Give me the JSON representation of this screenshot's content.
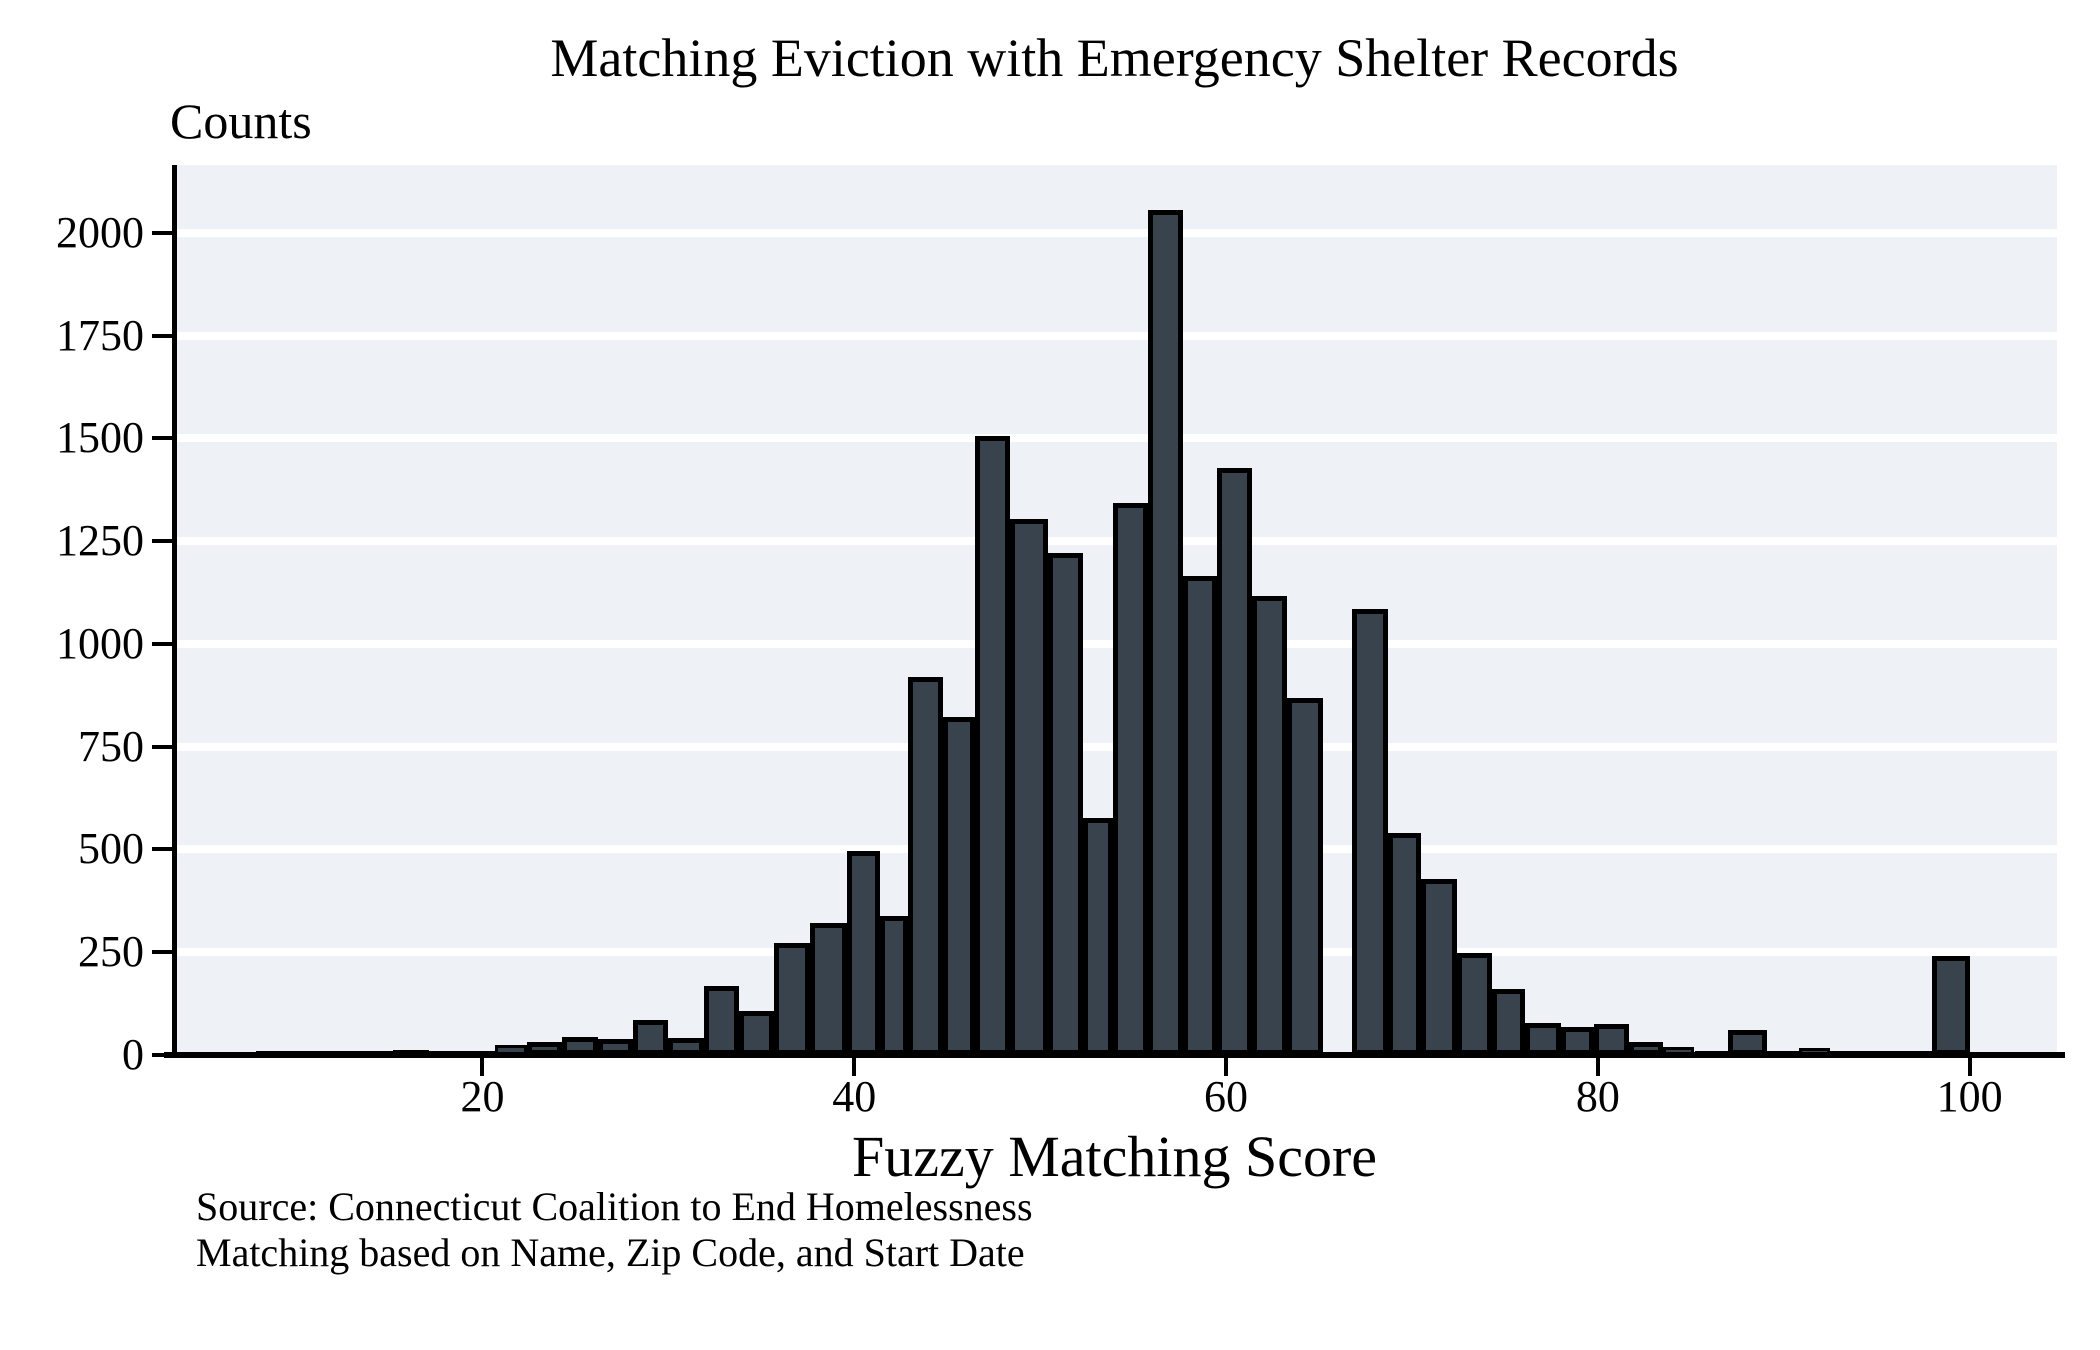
{
  "title": "Matching Eviction with Emergency Shelter Records",
  "notes": {
    "source_line1": "Source: Connecticut Coalition to End Homelessness",
    "source_line2": "Matching based on Name, Zip Code, and Start Date"
  },
  "colors": {
    "page_bg": "#ffffff",
    "plot_bg": "#eef1f6",
    "gridline": "#ffffff",
    "bar_fill": "#39434e",
    "bar_edge": "#000000",
    "axis": "#000000",
    "text": "#000000"
  },
  "chart_data": {
    "type": "bar",
    "subtype": "histogram",
    "title": "Matching Eviction with Emergency Shelter Records",
    "xlabel": "Fuzzy Matching Score",
    "ylabel": "Counts",
    "xlim": [
      3.3,
      104.7
    ],
    "ylim": [
      0,
      2165
    ],
    "x_ticks": [
      20,
      40,
      60,
      80,
      100
    ],
    "y_ticks": [
      0,
      250,
      500,
      750,
      1000,
      1250,
      1500,
      1750,
      2000
    ],
    "grid": "horizontal",
    "legend": "none",
    "bins": [
      {
        "x0": 7.8,
        "x1": 9.8,
        "n": 6
      },
      {
        "x0": 9.8,
        "x1": 11.6,
        "n": 3
      },
      {
        "x0": 11.6,
        "x1": 13.3,
        "n": 2
      },
      {
        "x0": 13.3,
        "x1": 15.2,
        "n": 8
      },
      {
        "x0": 15.2,
        "x1": 17.1,
        "n": 12
      },
      {
        "x0": 17.1,
        "x1": 19.1,
        "n": 8
      },
      {
        "x0": 19.1,
        "x1": 20.7,
        "n": 5
      },
      {
        "x0": 20.7,
        "x1": 22.4,
        "n": 24
      },
      {
        "x0": 22.4,
        "x1": 24.3,
        "n": 31
      },
      {
        "x0": 24.3,
        "x1": 26.2,
        "n": 45
      },
      {
        "x0": 26.2,
        "x1": 28.1,
        "n": 38
      },
      {
        "x0": 28.1,
        "x1": 30.0,
        "n": 85
      },
      {
        "x0": 30.0,
        "x1": 31.9,
        "n": 42
      },
      {
        "x0": 31.9,
        "x1": 33.8,
        "n": 168
      },
      {
        "x0": 33.8,
        "x1": 35.7,
        "n": 108
      },
      {
        "x0": 35.7,
        "x1": 37.6,
        "n": 273
      },
      {
        "x0": 37.6,
        "x1": 39.6,
        "n": 320
      },
      {
        "x0": 39.6,
        "x1": 41.4,
        "n": 497
      },
      {
        "x0": 41.4,
        "x1": 42.9,
        "n": 338
      },
      {
        "x0": 42.9,
        "x1": 44.8,
        "n": 919
      },
      {
        "x0": 44.8,
        "x1": 46.5,
        "n": 822
      },
      {
        "x0": 46.5,
        "x1": 48.4,
        "n": 1505
      },
      {
        "x0": 48.4,
        "x1": 50.4,
        "n": 1304
      },
      {
        "x0": 50.4,
        "x1": 52.3,
        "n": 1220
      },
      {
        "x0": 52.3,
        "x1": 53.9,
        "n": 576
      },
      {
        "x0": 53.9,
        "x1": 55.8,
        "n": 1344
      },
      {
        "x0": 55.8,
        "x1": 57.7,
        "n": 2055
      },
      {
        "x0": 57.7,
        "x1": 59.5,
        "n": 1166
      },
      {
        "x0": 59.5,
        "x1": 61.4,
        "n": 1429
      },
      {
        "x0": 61.4,
        "x1": 63.3,
        "n": 1117
      },
      {
        "x0": 63.3,
        "x1": 65.2,
        "n": 868
      },
      {
        "x0": 65.2,
        "x1": 66.8,
        "n": 0
      },
      {
        "x0": 66.8,
        "x1": 68.7,
        "n": 1085
      },
      {
        "x0": 68.7,
        "x1": 70.5,
        "n": 540
      },
      {
        "x0": 70.5,
        "x1": 72.4,
        "n": 428
      },
      {
        "x0": 72.4,
        "x1": 74.3,
        "n": 247
      },
      {
        "x0": 74.3,
        "x1": 76.1,
        "n": 160
      },
      {
        "x0": 76.1,
        "x1": 78.0,
        "n": 79
      },
      {
        "x0": 78.0,
        "x1": 79.8,
        "n": 69
      },
      {
        "x0": 79.8,
        "x1": 81.7,
        "n": 75
      },
      {
        "x0": 81.7,
        "x1": 83.5,
        "n": 32
      },
      {
        "x0": 83.5,
        "x1": 85.2,
        "n": 19
      },
      {
        "x0": 85.2,
        "x1": 87.0,
        "n": 7
      },
      {
        "x0": 87.0,
        "x1": 89.1,
        "n": 61
      },
      {
        "x0": 89.1,
        "x1": 90.8,
        "n": 2
      },
      {
        "x0": 90.8,
        "x1": 92.5,
        "n": 17
      },
      {
        "x0": 92.5,
        "x1": 94.1,
        "n": 2
      },
      {
        "x0": 94.1,
        "x1": 96.4,
        "n": 5
      },
      {
        "x0": 96.4,
        "x1": 98.0,
        "n": 8
      },
      {
        "x0": 98.0,
        "x1": 100.0,
        "n": 240
      }
    ]
  }
}
